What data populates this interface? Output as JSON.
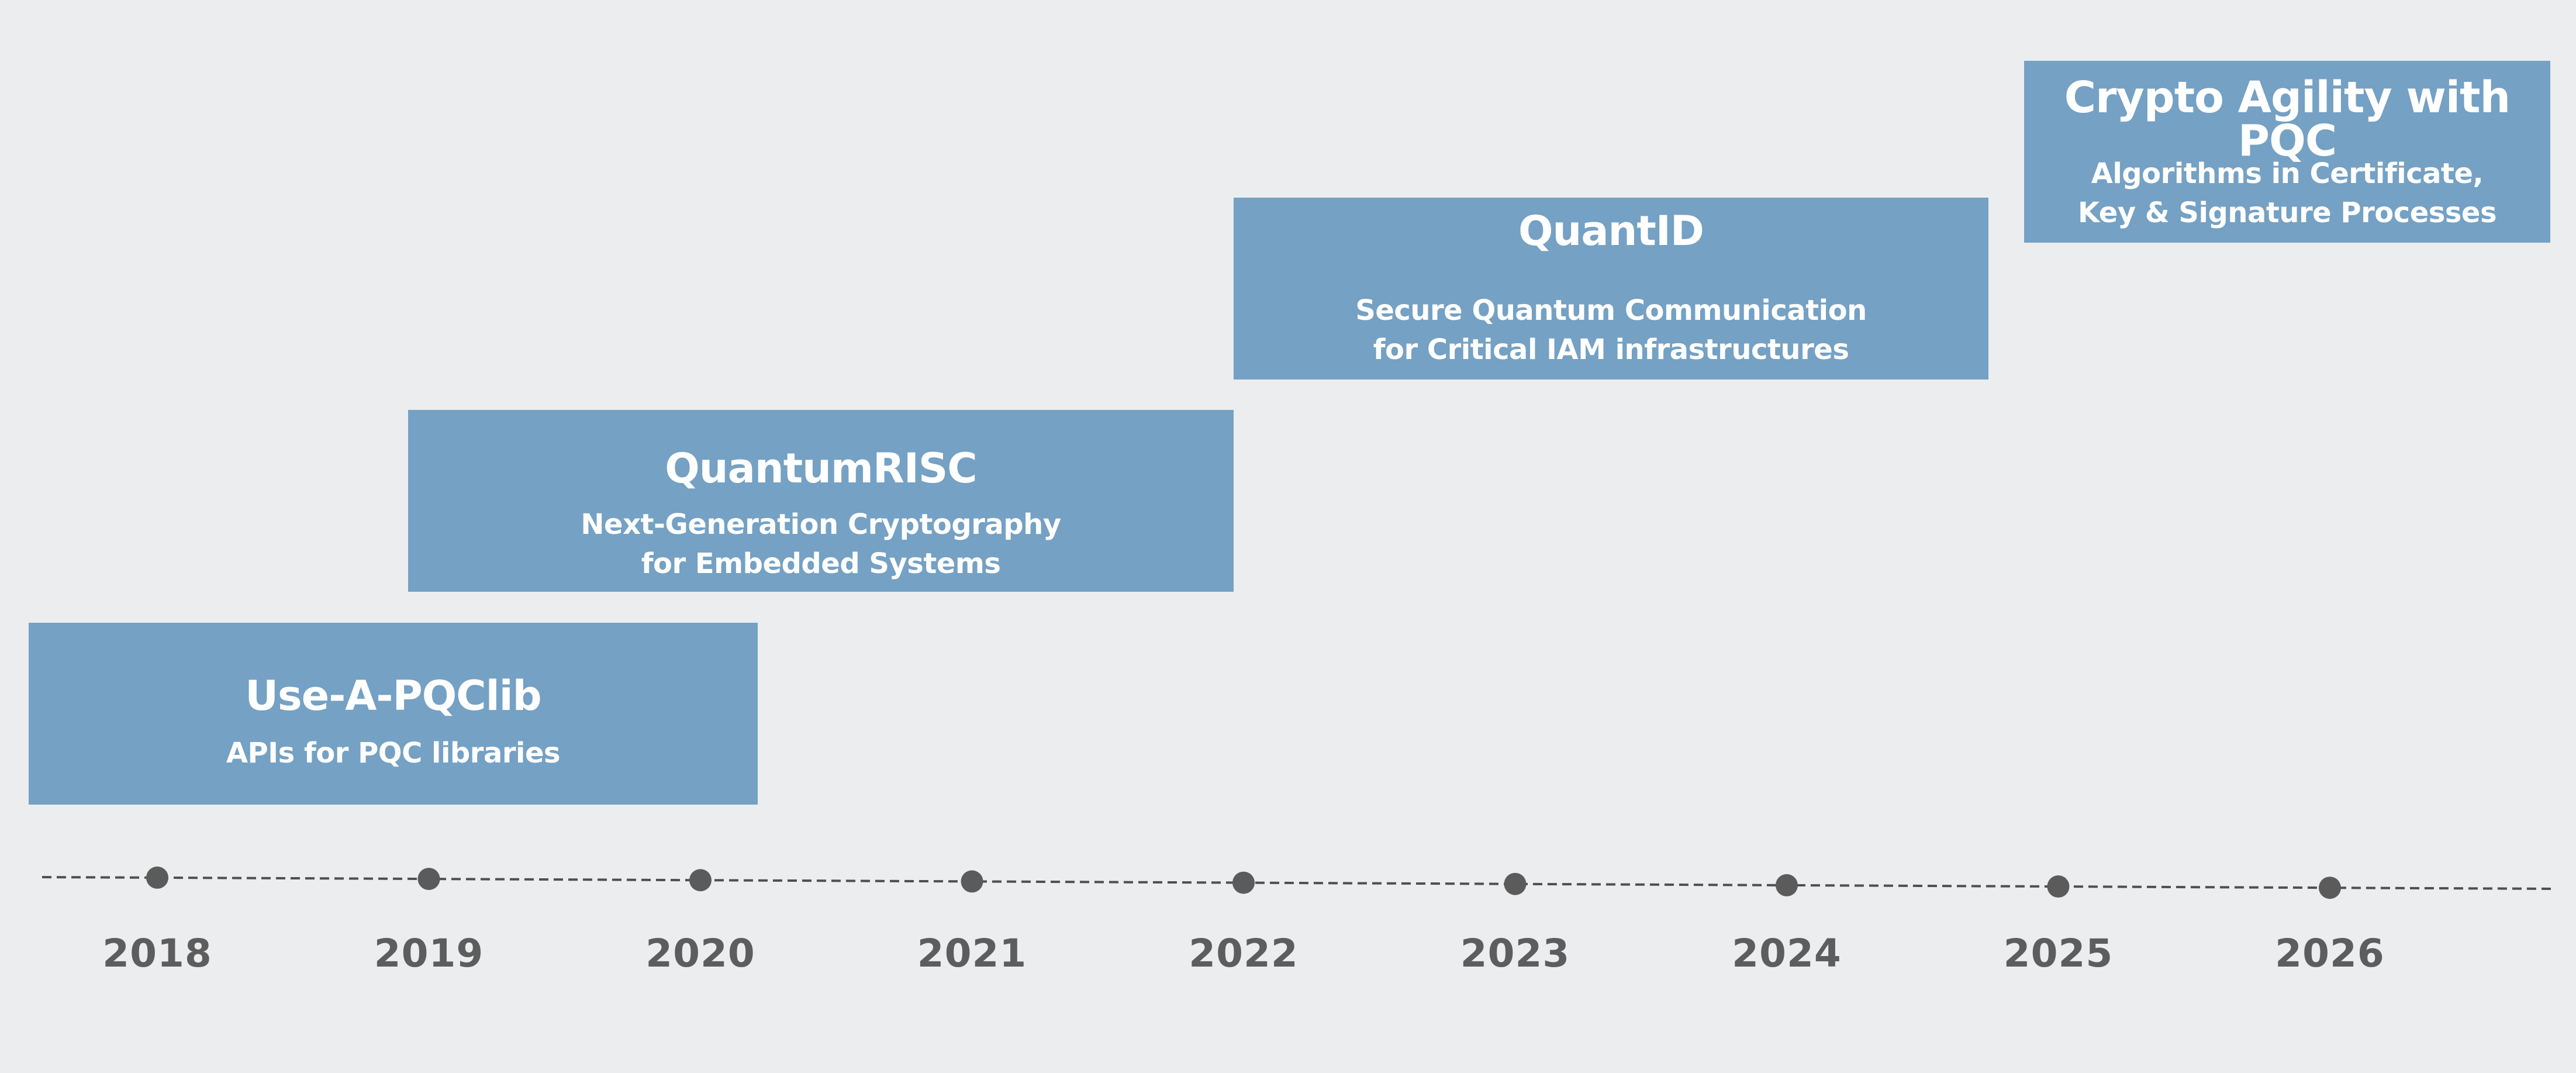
{
  "projects": [
    {
      "title": "Use-A-PQClib",
      "description": [
        "APIs for PQC libraries"
      ]
    },
    {
      "title": "QuantumRISC",
      "description": [
        "Next-Generation Cryptography",
        "for Embedded Systems"
      ]
    },
    {
      "title": "QuantID",
      "description": [
        "Secure Quantum Communication",
        "for Critical IAM infrastructures"
      ]
    },
    {
      "title": "Crypto Agility with PQC",
      "description": [
        "Algorithms in Certificate,",
        "Key & Signature Processes"
      ]
    }
  ],
  "timeline": {
    "years": [
      "2018",
      "2019",
      "2020",
      "2021",
      "2022",
      "2023",
      "2024",
      "2025",
      "2026"
    ],
    "line_color": "#4f4f4f",
    "dot_color": "#5b5b5b"
  },
  "colors": {
    "background": "#ecedef",
    "box": "#74a1c4",
    "box_text": "#ffffff",
    "year_text": "#5d5d5d"
  }
}
